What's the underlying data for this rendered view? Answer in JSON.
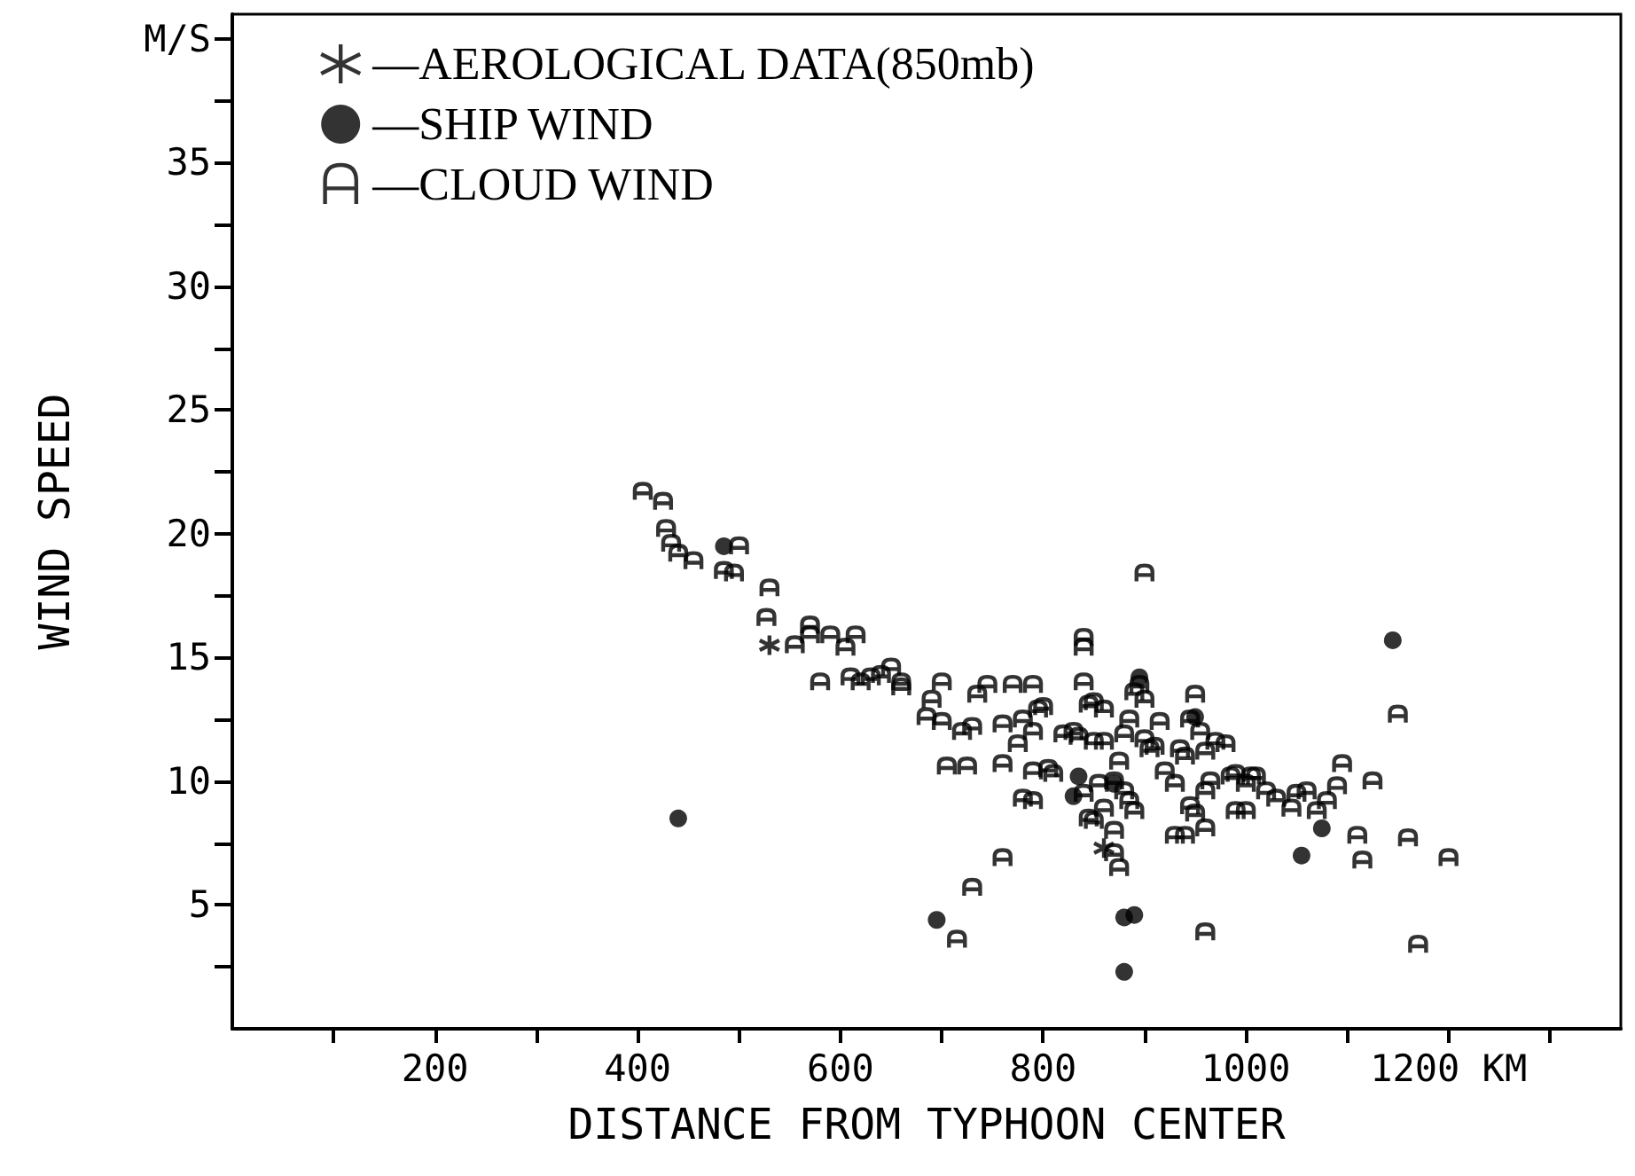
{
  "chart_data": {
    "type": "scatter",
    "xlabel": "DISTANCE FROM TYPHOON CENTER",
    "ylabel": "WIND SPEED",
    "xlim": [
      0,
      1370
    ],
    "ylim": [
      0,
      41
    ],
    "xticks": [
      {
        "value": 100,
        "label": null
      },
      200,
      {
        "value": 300,
        "label": null
      },
      400,
      {
        "value": 500,
        "label": null
      },
      600,
      {
        "value": 700,
        "label": null
      },
      800,
      {
        "value": 900,
        "label": null
      },
      1000,
      {
        "value": 1100,
        "label": null
      },
      {
        "value": 1200,
        "label": "1200 KM"
      },
      {
        "value": 1300,
        "label": null
      }
    ],
    "yticks": [
      {
        "value": 2.5,
        "label": null
      },
      5,
      {
        "value": 7.5,
        "label": null
      },
      10,
      {
        "value": 12.5,
        "label": null
      },
      15,
      {
        "value": 17.5,
        "label": null
      },
      20,
      {
        "value": 22.5,
        "label": null
      },
      25,
      {
        "value": 27.5,
        "label": null
      },
      30,
      {
        "value": 32.5,
        "label": null
      },
      35,
      {
        "value": 37.5,
        "label": null
      },
      {
        "value": 40,
        "label": "M/S"
      }
    ],
    "grid": false,
    "legend": "top left",
    "series": [
      {
        "name": "—AEROLOGICAL DATA(850mb)",
        "color": "#000000",
        "marker": "cross",
        "x": [
          530,
          860
        ],
        "values": [
          15.5,
          7.3
        ]
      },
      {
        "name": "—SHIP WIND",
        "color": "#000000",
        "marker": "circle",
        "x": [
          485,
          440,
          695,
          880,
          890,
          880,
          1145,
          1055,
          1075,
          835,
          870,
          830,
          895,
          950
        ],
        "values": [
          19.5,
          8.5,
          4.4,
          4.5,
          4.6,
          2.3,
          15.7,
          7.0,
          8.1,
          10.2,
          9.9,
          9.4,
          14.2,
          12.6
        ]
      },
      {
        "name": "—CLOUD WIND",
        "color": "#000000",
        "x": [
          405,
          425,
          428,
          433,
          440,
          455,
          485,
          495,
          500,
          530,
          527,
          555,
          570,
          570,
          590,
          605,
          615,
          580,
          610,
          620,
          630,
          640,
          650,
          660,
          660,
          690,
          685,
          700,
          700,
          705,
          735,
          745,
          730,
          760,
          780,
          790,
          720,
          725,
          760,
          770,
          775,
          790,
          790,
          795,
          800,
          810,
          780,
          790,
          805,
          820,
          830,
          835,
          840,
          840,
          840,
          845,
          850,
          860,
          850,
          860,
          855,
          840,
          845,
          850,
          860,
          870,
          870,
          875,
          870,
          880,
          885,
          890,
          875,
          880,
          885,
          890,
          895,
          900,
          900,
          905,
          910,
          915,
          900,
          920,
          930,
          935,
          940,
          945,
          950,
          955,
          960,
          960,
          965,
          970,
          980,
          985,
          990,
          1000,
          1005,
          1010,
          1020,
          1030,
          945,
          950,
          960,
          930,
          940,
          990,
          1000,
          1050,
          1060,
          1070,
          1080,
          1090,
          1095,
          1110,
          1115,
          1125,
          1150,
          1160,
          1200,
          1170,
          960,
          760,
          730,
          715,
          1045
        ],
        "values": [
          21.7,
          21.3,
          20.2,
          19.6,
          19.2,
          18.9,
          18.5,
          18.4,
          19.5,
          17.8,
          16.6,
          15.5,
          16.3,
          15.9,
          15.9,
          15.4,
          15.9,
          14.0,
          14.2,
          14.0,
          14.2,
          14.3,
          14.6,
          14.0,
          13.8,
          13.3,
          12.6,
          14.0,
          12.4,
          10.6,
          13.5,
          13.9,
          12.2,
          12.3,
          12.5,
          12.0,
          12.0,
          10.6,
          10.7,
          13.9,
          11.5,
          10.4,
          13.9,
          12.9,
          13.0,
          10.3,
          9.3,
          9.2,
          10.5,
          11.9,
          12.0,
          11.8,
          15.8,
          15.4,
          14.0,
          13.1,
          13.2,
          12.9,
          11.6,
          11.6,
          9.9,
          9.5,
          8.5,
          8.4,
          8.9,
          8.0,
          7.1,
          6.5,
          10.0,
          9.6,
          9.2,
          8.8,
          10.8,
          11.9,
          12.5,
          13.6,
          13.9,
          13.3,
          11.7,
          11.3,
          11.4,
          12.4,
          18.4,
          10.4,
          9.9,
          11.3,
          11.0,
          12.5,
          13.5,
          12.0,
          11.2,
          9.6,
          10.0,
          11.6,
          11.5,
          10.2,
          10.3,
          9.9,
          10.2,
          10.2,
          9.6,
          9.3,
          9.0,
          8.7,
          8.1,
          7.8,
          7.8,
          8.8,
          8.8,
          9.5,
          9.6,
          8.8,
          9.2,
          9.8,
          10.7,
          7.8,
          6.8,
          10.0,
          12.7,
          7.7,
          6.9,
          3.4,
          3.9,
          6.9,
          5.7,
          3.6,
          8.9
        ]
      }
    ]
  }
}
